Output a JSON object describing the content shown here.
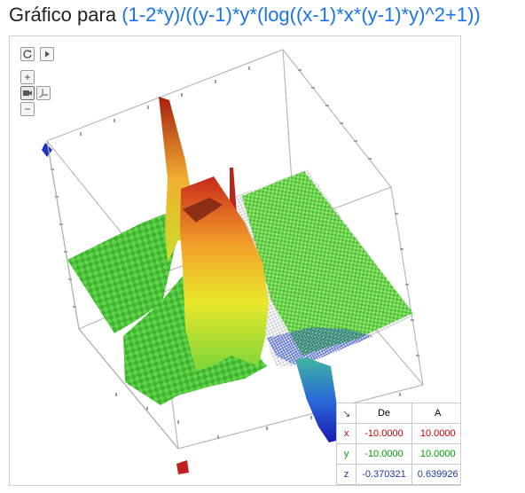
{
  "title": {
    "prefix": "Gráfico para",
    "function": "(1-2*y)/((y-1)*y*(log((x-1)*x*(y-1)*y)^2+1))"
  },
  "toolbar": {
    "reset_icon": "refresh-icon",
    "play_icon": "play-icon",
    "zoom_in_label": "+",
    "zoom_out_label": "−",
    "camera_icon": "camera-icon",
    "axes_icon": "axes-icon"
  },
  "range_table": {
    "corner_label": "↘",
    "header_from": "De",
    "header_to": "A",
    "rows": [
      {
        "axis": "x",
        "from": "-10.0000",
        "to": "10.0000"
      },
      {
        "axis": "y",
        "from": "-10.0000",
        "to": "10.0000"
      },
      {
        "axis": "z",
        "from": "-0.370321",
        "to": "0.639926"
      }
    ]
  },
  "colors": {
    "function_text": "#1a73e8",
    "x_axis": "#c00000",
    "y_axis": "#00a000",
    "z_axis": "#1a3aa0",
    "surface_low": "#3ac23a",
    "surface_high": "#e83a1a"
  }
}
